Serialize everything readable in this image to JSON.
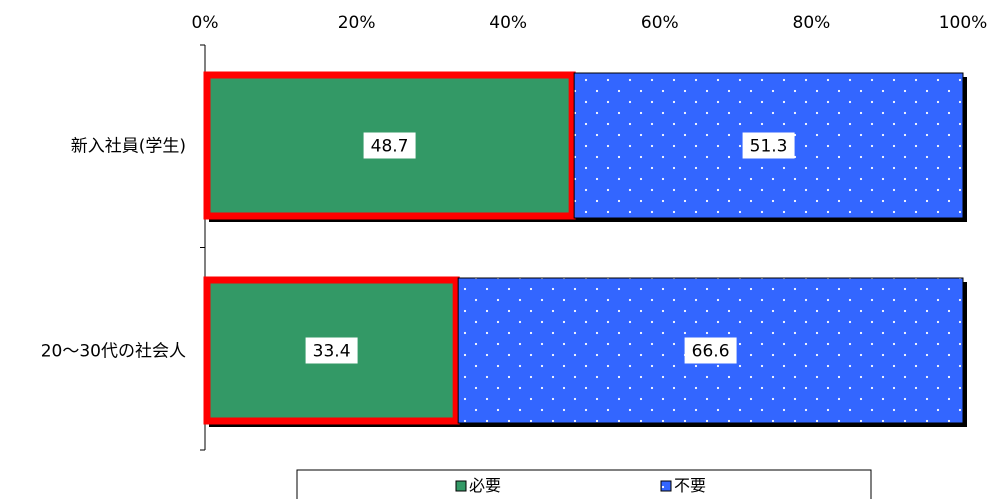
{
  "chart_data": {
    "type": "bar",
    "orientation": "horizontal",
    "stacked": true,
    "percent_axis": true,
    "categories": [
      "新入社員(学生)",
      "20～30代の社会人"
    ],
    "series": [
      {
        "name": "必要",
        "values": [
          48.7,
          33.4
        ],
        "color": "#339966",
        "highlight_border": "#ff0000"
      },
      {
        "name": "不要",
        "values": [
          51.3,
          66.6
        ],
        "color": "#3366ff",
        "pattern": "white-dots"
      }
    ],
    "x_ticks": [
      "0%",
      "20%",
      "40%",
      "60%",
      "80%",
      "100%"
    ],
    "xlim": [
      0,
      100
    ],
    "x_axis_position": "top",
    "legend_position": "bottom",
    "grid": false
  }
}
